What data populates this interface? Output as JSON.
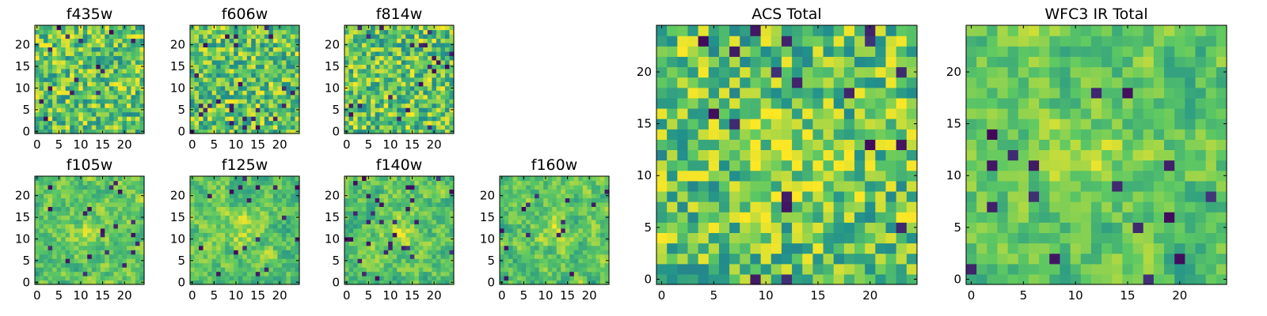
{
  "figure": {
    "colormap": [
      "#440154",
      "#3b528b",
      "#21918c",
      "#5ec962",
      "#fde725"
    ]
  },
  "chart_data": [
    {
      "type": "heatmap",
      "title": "f435w",
      "xlim": [
        0,
        24
      ],
      "ylim": [
        0,
        24
      ],
      "xticks": [
        0,
        5,
        10,
        15,
        20
      ],
      "yticks": [
        0,
        5,
        10,
        15,
        20
      ],
      "pattern": "noise",
      "seed": 11,
      "bright_spot": null
    },
    {
      "type": "heatmap",
      "title": "f606w",
      "xlim": [
        0,
        24
      ],
      "ylim": [
        0,
        24
      ],
      "xticks": [
        0,
        5,
        10,
        15,
        20
      ],
      "yticks": [
        0,
        5,
        10,
        15,
        20
      ],
      "pattern": "noise",
      "seed": 23,
      "bright_spot": null
    },
    {
      "type": "heatmap",
      "title": "f814w",
      "xlim": [
        0,
        24
      ],
      "ylim": [
        0,
        24
      ],
      "xticks": [
        0,
        5,
        10,
        15,
        20
      ],
      "yticks": [
        0,
        5,
        10,
        15,
        20
      ],
      "pattern": "noise",
      "seed": 37,
      "bright_spot": null
    },
    {
      "type": "heatmap",
      "title": "f105w",
      "xlim": [
        0,
        24
      ],
      "ylim": [
        0,
        24
      ],
      "xticks": [
        0,
        5,
        10,
        15,
        20
      ],
      "yticks": [
        0,
        5,
        10,
        15,
        20
      ],
      "pattern": "smooth",
      "seed": 41,
      "bright_spot": [
        12,
        12
      ]
    },
    {
      "type": "heatmap",
      "title": "f125w",
      "xlim": [
        0,
        24
      ],
      "ylim": [
        0,
        24
      ],
      "xticks": [
        0,
        5,
        10,
        15,
        20
      ],
      "yticks": [
        0,
        5,
        10,
        15,
        20
      ],
      "pattern": "smooth",
      "seed": 53,
      "bright_spot": [
        12,
        12
      ]
    },
    {
      "type": "heatmap",
      "title": "f140w",
      "xlim": [
        0,
        24
      ],
      "ylim": [
        0,
        24
      ],
      "xticks": [
        0,
        5,
        10,
        15,
        20
      ],
      "yticks": [
        0,
        5,
        10,
        15,
        20
      ],
      "pattern": "smooth",
      "seed": 67,
      "bright_spot": [
        12,
        12
      ]
    },
    {
      "type": "heatmap",
      "title": "f160w",
      "xlim": [
        0,
        24
      ],
      "ylim": [
        0,
        24
      ],
      "xticks": [
        0,
        5,
        10,
        15,
        20
      ],
      "yticks": [
        0,
        5,
        10,
        15,
        20
      ],
      "pattern": "smooth",
      "seed": 79,
      "bright_spot": [
        12,
        12
      ]
    },
    {
      "type": "heatmap",
      "title": "ACS Total",
      "xlim": [
        0,
        24
      ],
      "ylim": [
        0,
        24
      ],
      "xticks": [
        0,
        5,
        10,
        15,
        20
      ],
      "yticks": [
        0,
        5,
        10,
        15,
        20
      ],
      "pattern": "noise",
      "seed": 97,
      "bright_spot": [
        12,
        12
      ]
    },
    {
      "type": "heatmap",
      "title": "WFC3 IR Total",
      "xlim": [
        0,
        24
      ],
      "ylim": [
        0,
        24
      ],
      "xticks": [
        0,
        5,
        10,
        15,
        20
      ],
      "yticks": [
        0,
        5,
        10,
        15,
        20
      ],
      "pattern": "smooth",
      "seed": 131,
      "bright_spot": [
        12,
        12
      ]
    }
  ]
}
